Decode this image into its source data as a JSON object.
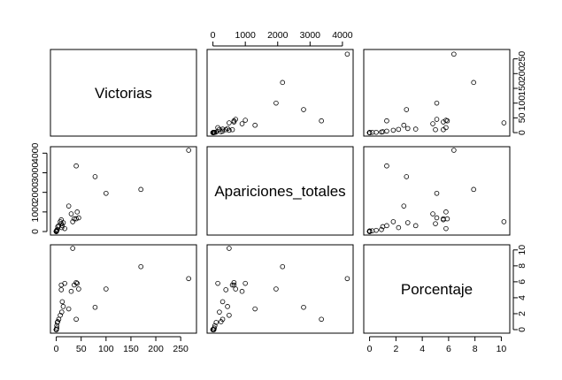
{
  "chart_data": {
    "type": "scatter",
    "variables": [
      {
        "name": "Victorias",
        "lim": [
          0,
          270
        ],
        "ticks": [
          0,
          50,
          100,
          150,
          200,
          250
        ],
        "tick_labels": [
          "0",
          "50",
          "100",
          "150",
          "200",
          "250"
        ]
      },
      {
        "name": "Apariciones_totales",
        "lim": [
          0,
          4150
        ],
        "ticks": [
          0,
          1000,
          2000,
          3000,
          4000
        ],
        "tick_labels": [
          "0",
          "1000",
          "2000",
          "3000",
          "4000"
        ]
      },
      {
        "name": "Porcentaje",
        "lim": [
          0,
          10.2
        ],
        "ticks": [
          0,
          2,
          4,
          6,
          8,
          10
        ],
        "tick_labels": [
          "0",
          "2",
          "4",
          "6",
          "8",
          "10"
        ]
      }
    ],
    "observations": [
      [
        266,
        4150,
        6.4
      ],
      [
        170,
        2150,
        7.9
      ],
      [
        100,
        1950,
        5.1
      ],
      [
        78,
        2800,
        2.8
      ],
      [
        40,
        3350,
        1.3
      ],
      [
        36,
        650,
        5.6
      ],
      [
        33,
        500,
        10.2
      ],
      [
        25,
        1300,
        2.6
      ],
      [
        30,
        900,
        4.8
      ],
      [
        42,
        1000,
        5.8
      ],
      [
        45,
        700,
        5.1
      ],
      [
        40,
        650,
        5.9
      ],
      [
        10,
        600,
        5.6
      ],
      [
        17,
        150,
        5.8
      ],
      [
        10,
        400,
        5.0
      ],
      [
        12,
        300,
        3.5
      ],
      [
        11,
        200,
        2.2
      ],
      [
        8,
        500,
        1.8
      ],
      [
        14,
        450,
        2.9
      ],
      [
        5,
        300,
        1.3
      ],
      [
        3,
        250,
        1.0
      ],
      [
        2,
        100,
        0.9
      ],
      [
        1,
        60,
        0.5
      ],
      [
        1,
        40,
        0.2
      ],
      [
        0,
        30,
        0
      ],
      [
        0,
        20,
        0
      ],
      [
        0,
        15,
        0
      ],
      [
        0,
        10,
        0
      ],
      [
        0,
        5,
        0
      ],
      [
        0,
        2,
        0
      ],
      [
        0,
        0,
        0
      ],
      [
        0,
        0,
        0
      ],
      [
        0,
        0,
        0
      ]
    ],
    "axis_sides": {
      "top_columns": [
        1
      ],
      "bottom_columns": [
        0,
        2
      ],
      "left_rows": [
        1
      ],
      "right_rows": [
        0,
        2
      ]
    },
    "grid": false,
    "legend": "none"
  }
}
